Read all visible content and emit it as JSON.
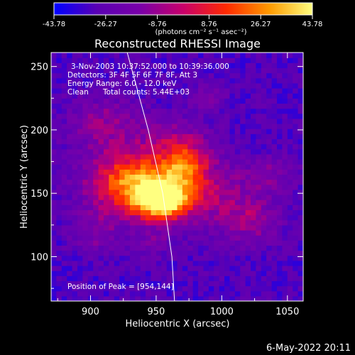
{
  "chart_data": {
    "type": "heatmap",
    "title": "Reconstructed RHESSI Image",
    "xlabel": "Heliocentric X (arcsec)",
    "ylabel": "Heliocentric Y (arcsec)",
    "xlim": [
      870,
      1062
    ],
    "ylim": [
      65,
      261
    ],
    "x_ticks": [
      {
        "value": 900,
        "label": "900"
      },
      {
        "value": 950,
        "label": "950"
      },
      {
        "value": 1000,
        "label": "1000"
      },
      {
        "value": 1050,
        "label": "1050"
      }
    ],
    "y_ticks": [
      {
        "value": 100,
        "label": "100"
      },
      {
        "value": 150,
        "label": "150"
      },
      {
        "value": 200,
        "label": "200"
      },
      {
        "value": 250,
        "label": "250"
      }
    ],
    "colorbar": {
      "min": -43.78,
      "max": 43.78,
      "tick_labels": [
        "-43.78",
        "-26.27",
        "-8.76",
        "8.76",
        "26.27",
        "43.78"
      ],
      "units_label": "(photons cm⁻² s⁻¹ asec⁻²)",
      "colormap": [
        "#0000ff",
        "#5a00b4",
        "#7a00a8",
        "#c8006a",
        "#ff2a00",
        "#ff9a00",
        "#ffff80"
      ]
    },
    "annotations": {
      "time_range": "3-Nov-2003 10:37:52.000 to 10:39:36.000",
      "detectors": "Detectors: 3F 4F 5F 6F 7F 8F, Att 3",
      "energy_range": "Energy Range: 6.0 - 12.0 keV",
      "method": "Clean",
      "total_counts": "Total counts: 5.44E+03",
      "peak_position": "Position of Peak = [954,144]"
    },
    "peak": {
      "x": 954,
      "y": 144
    },
    "limb_line": [
      [
        928,
        261
      ],
      [
        944,
        200
      ],
      [
        955,
        150
      ],
      [
        962,
        100
      ],
      [
        964,
        65
      ]
    ],
    "image_grid": {
      "x_start": 870,
      "x_end": 1062,
      "y_start": 65,
      "y_end": 261,
      "pixel_arcsec": 4,
      "sources": [
        {
          "x": 954,
          "y": 144,
          "sigma_x": 14,
          "sigma_y": 10,
          "amp": 32
        },
        {
          "x": 940,
          "y": 158,
          "sigma_x": 24,
          "sigma_y": 14,
          "amp": 16
        },
        {
          "x": 972,
          "y": 170,
          "sigma_x": 12,
          "sigma_y": 12,
          "amp": 14
        },
        {
          "x": 925,
          "y": 160,
          "sigma_x": 22,
          "sigma_y": 20,
          "amp": 12
        },
        {
          "x": 965,
          "y": 188,
          "sigma_x": 18,
          "sigma_y": 14,
          "amp": 10
        },
        {
          "x": 995,
          "y": 148,
          "sigma_x": 24,
          "sigma_y": 20,
          "amp": 10
        },
        {
          "x": 912,
          "y": 205,
          "sigma_x": 20,
          "sigma_y": 14,
          "amp": 9
        },
        {
          "x": 1025,
          "y": 128,
          "sigma_x": 14,
          "sigma_y": 12,
          "amp": 8
        },
        {
          "x": 905,
          "y": 120,
          "sigma_x": 12,
          "sigma_y": 12,
          "amp": 7
        },
        {
          "x": 990,
          "y": 225,
          "sigma_x": 10,
          "sigma_y": 8,
          "amp": 6
        },
        {
          "x": 1040,
          "y": 165,
          "sigma_x": 12,
          "sigma_y": 10,
          "amp": 6
        },
        {
          "x": 948,
          "y": 112,
          "sigma_x": 10,
          "sigma_y": 8,
          "amp": 6
        }
      ],
      "background": -30,
      "noise_amplitude": 7
    }
  },
  "timestamp": "6-May-2022 20:11"
}
